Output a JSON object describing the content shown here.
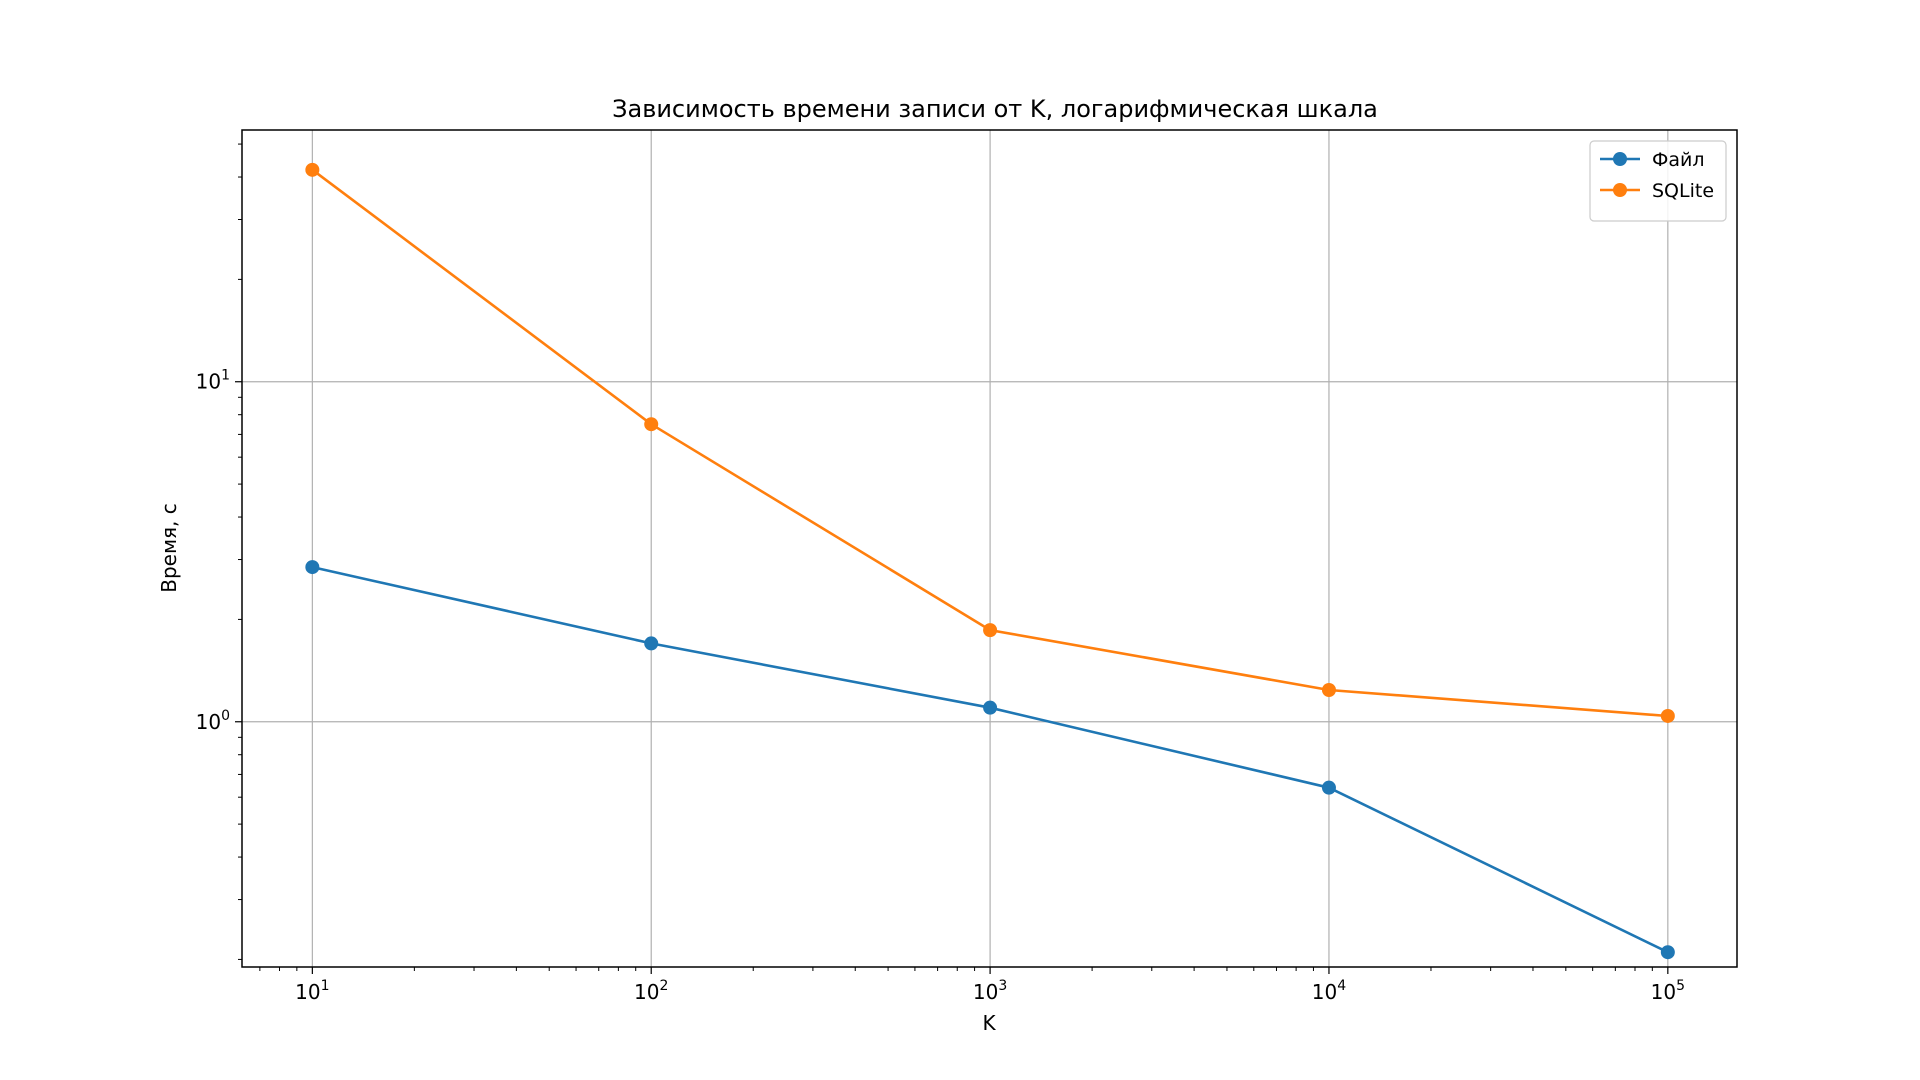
{
  "chart_data": {
    "type": "line",
    "title": "Зависимость времени записи от K, логарифмическая шкала",
    "xlabel": "K",
    "ylabel": "Время, с",
    "xscale": "log",
    "yscale": "log",
    "xlim": [
      6.2,
      160000
    ],
    "ylim": [
      0.19,
      55
    ],
    "x": [
      10,
      100,
      1000,
      10000,
      100000
    ],
    "x_ticks": [
      {
        "value": 10,
        "base": "10",
        "exp": "1"
      },
      {
        "value": 100,
        "base": "10",
        "exp": "2"
      },
      {
        "value": 1000,
        "base": "10",
        "exp": "3"
      },
      {
        "value": 10000,
        "base": "10",
        "exp": "4"
      },
      {
        "value": 100000,
        "base": "10",
        "exp": "5"
      }
    ],
    "y_ticks": [
      {
        "value": 1,
        "base": "10",
        "exp": "0"
      },
      {
        "value": 10,
        "base": "10",
        "exp": "1"
      }
    ],
    "series": [
      {
        "name": "Файл",
        "color": "#1f77b4",
        "values": [
          2.85,
          1.7,
          1.1,
          0.64,
          0.21
        ]
      },
      {
        "name": "SQLite",
        "color": "#ff7f0e",
        "values": [
          42.0,
          7.5,
          1.86,
          1.24,
          1.04
        ]
      }
    ],
    "grid": true,
    "legend_position": "top-right"
  }
}
